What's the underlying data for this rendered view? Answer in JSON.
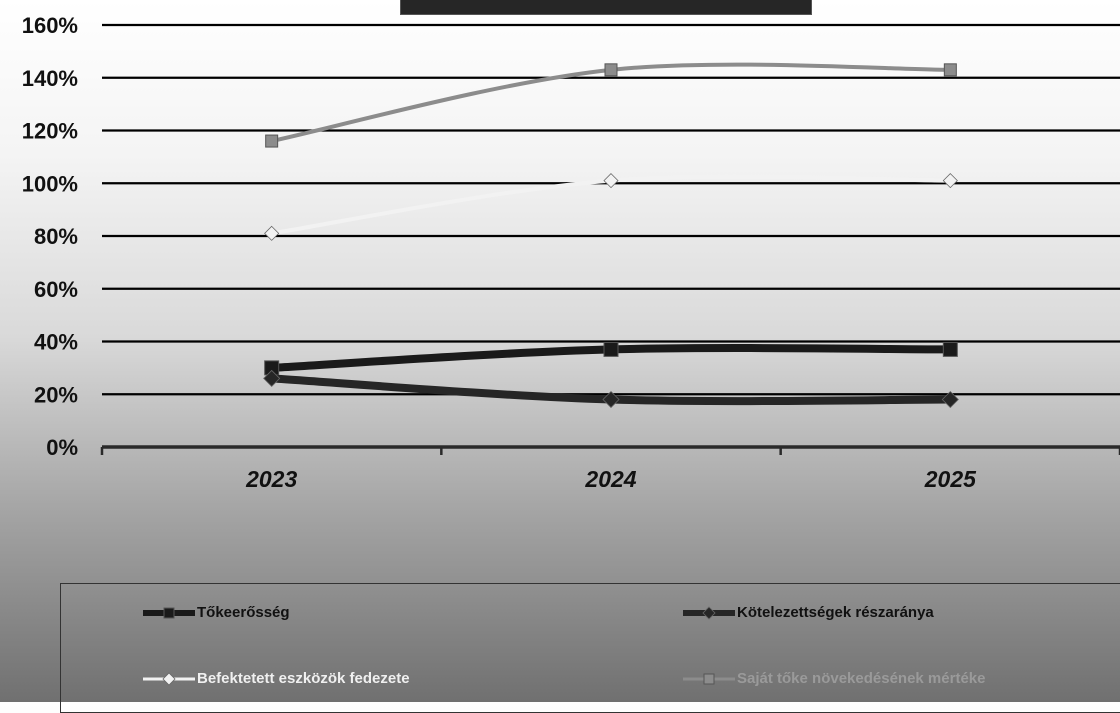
{
  "chart_data": {
    "type": "line",
    "title": "",
    "categories": [
      "2023",
      "2024",
      "2025"
    ],
    "ylim": [
      0,
      160
    ],
    "ytick_values": [
      0,
      20,
      40,
      60,
      80,
      100,
      120,
      140,
      160
    ],
    "ytick_labels": [
      "0%",
      "20%",
      "40%",
      "60%",
      "80%",
      "100%",
      "120%",
      "140%",
      "160%"
    ],
    "grid": true,
    "legend_position": "bottom",
    "series": [
      {
        "name": "Tőkeerősség",
        "values": [
          30,
          37,
          37
        ],
        "color": "#1a1a1a",
        "marker": "square"
      },
      {
        "name": "Kötelezettségek részaránya",
        "values": [
          26,
          18,
          18
        ],
        "color": "#262626",
        "marker": "diamond"
      },
      {
        "name": "Befektetett eszközök fedezete",
        "values": [
          81,
          101,
          101
        ],
        "color": "#f2f2f2",
        "marker": "diamond"
      },
      {
        "name": "Saját tőke növekedésének mértéke",
        "values": [
          116,
          143,
          143
        ],
        "color": "#8c8c8c",
        "marker": "square"
      }
    ]
  }
}
